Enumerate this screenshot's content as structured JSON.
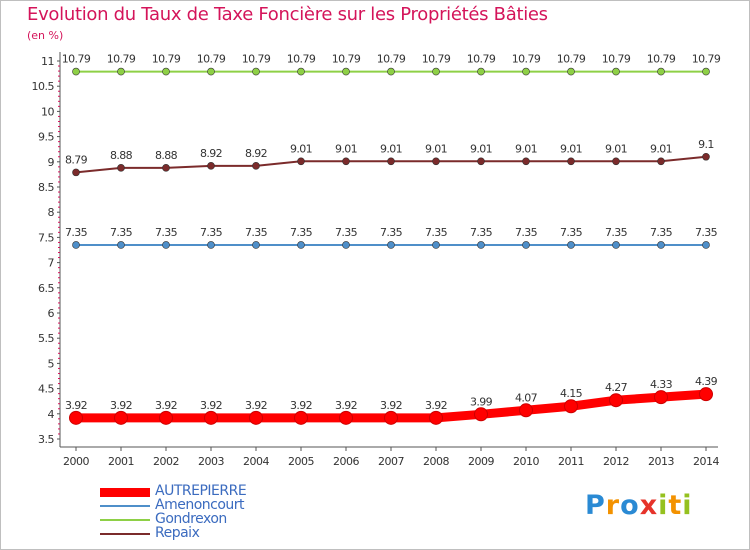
{
  "title": "Evolution du Taux de Taxe Foncière sur les Propriétés Bâties",
  "subtitle": "(en %)",
  "logo": {
    "letters": [
      {
        "ch": "P",
        "color": "#2a8ad4"
      },
      {
        "ch": "r",
        "color": "#f39200"
      },
      {
        "ch": "o",
        "color": "#2a8ad4"
      },
      {
        "ch": "x",
        "color": "#e6332a"
      },
      {
        "ch": "i",
        "color": "#95c11f"
      },
      {
        "ch": "t",
        "color": "#f39200"
      },
      {
        "ch": "i",
        "color": "#95c11f"
      }
    ]
  },
  "chart_data": {
    "type": "line",
    "title": "Evolution du Taux de Taxe Foncière sur les Propriétés Bâties",
    "ylabel": "(en %)",
    "xlabel": "",
    "x": [
      "2000",
      "2001",
      "2002",
      "2003",
      "2004",
      "2005",
      "2006",
      "2007",
      "2008",
      "2009",
      "2010",
      "2011",
      "2012",
      "2013",
      "2014"
    ],
    "ylim": [
      3.5,
      11
    ],
    "yticks": [
      "3.5",
      "4",
      "4.5",
      "5",
      "5.5",
      "6",
      "6.5",
      "7",
      "7.5",
      "8",
      "8.5",
      "9",
      "9.5",
      "10",
      "10.5",
      "11"
    ],
    "series": [
      {
        "name": "AUTREPIERRE",
        "color": "#ff0000",
        "bold": true,
        "values": [
          3.92,
          3.92,
          3.92,
          3.92,
          3.92,
          3.92,
          3.92,
          3.92,
          3.92,
          3.99,
          4.07,
          4.15,
          4.27,
          4.33,
          4.39
        ],
        "labels": [
          "3.92",
          "3.92",
          "3.92",
          "3.92",
          "3.92",
          "3.92",
          "3.92",
          "3.92",
          "3.92",
          "3.99",
          "4.07",
          "4.15",
          "4.27",
          "4.33",
          "4.39"
        ]
      },
      {
        "name": "Amenoncourt",
        "color": "#4f8fc9",
        "bold": false,
        "values": [
          7.35,
          7.35,
          7.35,
          7.35,
          7.35,
          7.35,
          7.35,
          7.35,
          7.35,
          7.35,
          7.35,
          7.35,
          7.35,
          7.35,
          7.35
        ],
        "labels": [
          "7.35",
          "7.35",
          "7.35",
          "7.35",
          "7.35",
          "7.35",
          "7.35",
          "7.35",
          "7.35",
          "7.35",
          "7.35",
          "7.35",
          "7.35",
          "7.35",
          "7.35"
        ]
      },
      {
        "name": "Gondrexon",
        "color": "#8ed046",
        "bold": false,
        "values": [
          10.79,
          10.79,
          10.79,
          10.79,
          10.79,
          10.79,
          10.79,
          10.79,
          10.79,
          10.79,
          10.79,
          10.79,
          10.79,
          10.79,
          10.79
        ],
        "labels": [
          "10.79",
          "10.79",
          "10.79",
          "10.79",
          "10.79",
          "10.79",
          "10.79",
          "10.79",
          "10.79",
          "10.79",
          "10.79",
          "10.79",
          "10.79",
          "10.79",
          "10.79"
        ]
      },
      {
        "name": "Repaix",
        "color": "#7b2b2b",
        "bold": false,
        "values": [
          8.79,
          8.88,
          8.88,
          8.92,
          8.92,
          9.01,
          9.01,
          9.01,
          9.01,
          9.01,
          9.01,
          9.01,
          9.01,
          9.01,
          9.1
        ],
        "labels": [
          "8.79",
          "8.88",
          "8.88",
          "8.92",
          "8.92",
          "9.01",
          "9.01",
          "9.01",
          "9.01",
          "9.01",
          "9.01",
          "9.01",
          "9.01",
          "9.01",
          "9.1"
        ]
      }
    ],
    "legend_position": "bottom-left",
    "grid": false
  }
}
